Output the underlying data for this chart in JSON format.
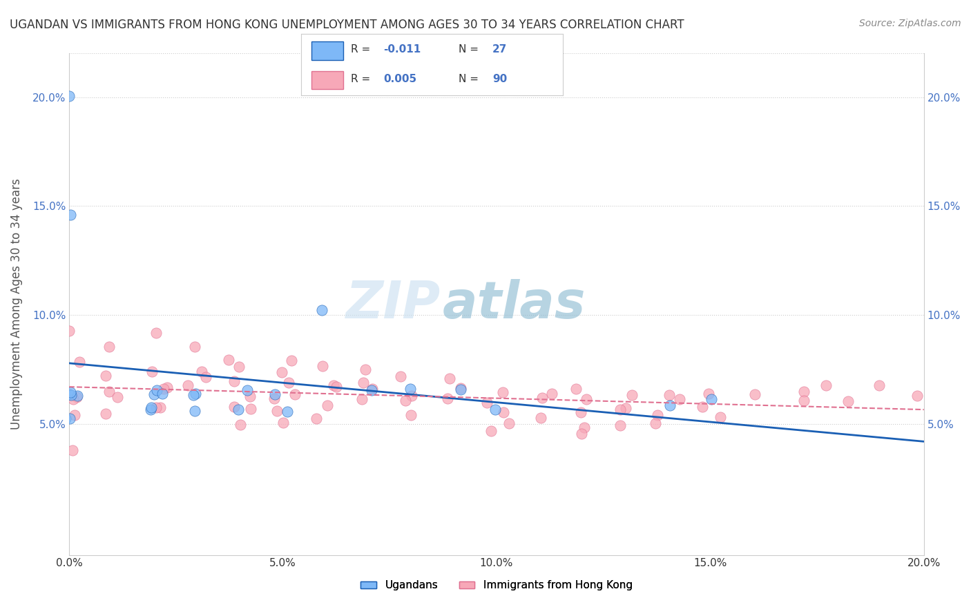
{
  "title": "UGANDAN VS IMMIGRANTS FROM HONG KONG UNEMPLOYMENT AMONG AGES 30 TO 34 YEARS CORRELATION CHART",
  "source": "Source: ZipAtlas.com",
  "ylabel": "Unemployment Among Ages 30 to 34 years",
  "xmin": 0.0,
  "xmax": 0.2,
  "ymin": -0.01,
  "ymax": 0.22,
  "x_ticks": [
    0.0,
    0.05,
    0.1,
    0.15,
    0.2
  ],
  "x_tick_labels": [
    "0.0%",
    "5.0%",
    "10.0%",
    "15.0%",
    "20.0%"
  ],
  "y_ticks": [
    0.05,
    0.1,
    0.15,
    0.2
  ],
  "y_tick_labels": [
    "5.0%",
    "10.0%",
    "15.0%",
    "20.0%"
  ],
  "legend1_label": "Ugandans",
  "legend2_label": "Immigrants from Hong Kong",
  "R1": "-0.011",
  "N1": "27",
  "R2": "0.005",
  "N2": "90",
  "color1": "#7eb8f7",
  "color2": "#f7a8b8",
  "line1_color": "#1a5fb4",
  "line2_color": "#e07090",
  "background_color": "#ffffff",
  "grid_color": "#cccccc",
  "uganda_x": [
    0.0,
    0.0,
    0.0,
    0.0,
    0.0,
    0.0,
    0.0,
    0.0,
    0.02,
    0.02,
    0.02,
    0.02,
    0.02,
    0.03,
    0.03,
    0.03,
    0.04,
    0.04,
    0.05,
    0.05,
    0.06,
    0.07,
    0.08,
    0.09,
    0.1,
    0.14,
    0.15
  ],
  "uganda_y": [
    0.2,
    0.145,
    0.0635,
    0.065,
    0.066,
    0.066,
    0.055,
    0.055,
    0.065,
    0.065,
    0.065,
    0.055,
    0.055,
    0.065,
    0.065,
    0.055,
    0.065,
    0.055,
    0.055,
    0.065,
    0.1,
    0.065,
    0.065,
    0.065,
    0.055,
    0.057,
    0.062
  ],
  "hk_x": [
    0.0,
    0.0,
    0.0,
    0.0,
    0.0,
    0.0,
    0.0,
    0.0,
    0.0,
    0.0,
    0.0,
    0.01,
    0.01,
    0.01,
    0.01,
    0.01,
    0.02,
    0.02,
    0.02,
    0.02,
    0.02,
    0.02,
    0.03,
    0.03,
    0.03,
    0.03,
    0.04,
    0.04,
    0.04,
    0.04,
    0.04,
    0.04,
    0.04,
    0.05,
    0.05,
    0.05,
    0.05,
    0.05,
    0.05,
    0.05,
    0.06,
    0.06,
    0.06,
    0.06,
    0.06,
    0.07,
    0.07,
    0.07,
    0.07,
    0.08,
    0.08,
    0.08,
    0.08,
    0.09,
    0.09,
    0.09,
    0.1,
    0.1,
    0.1,
    0.1,
    0.1,
    0.11,
    0.11,
    0.11,
    0.12,
    0.12,
    0.12,
    0.12,
    0.12,
    0.13,
    0.13,
    0.13,
    0.13,
    0.14,
    0.14,
    0.14,
    0.14,
    0.15,
    0.15,
    0.15,
    0.16,
    0.17,
    0.17,
    0.18,
    0.18,
    0.19,
    0.2,
    0.2,
    0.2,
    0.2
  ],
  "hk_y": [
    0.115,
    0.09,
    0.08,
    0.07,
    0.065,
    0.06,
    0.055,
    0.05,
    0.045,
    0.04,
    0.035,
    0.085,
    0.07,
    0.065,
    0.06,
    0.055,
    0.09,
    0.075,
    0.07,
    0.065,
    0.06,
    0.055,
    0.085,
    0.075,
    0.07,
    0.065,
    0.08,
    0.075,
    0.07,
    0.065,
    0.06,
    0.055,
    0.05,
    0.08,
    0.075,
    0.07,
    0.065,
    0.06,
    0.055,
    0.05,
    0.075,
    0.07,
    0.065,
    0.06,
    0.055,
    0.075,
    0.07,
    0.065,
    0.06,
    0.07,
    0.065,
    0.06,
    0.055,
    0.07,
    0.065,
    0.06,
    0.065,
    0.06,
    0.055,
    0.05,
    0.045,
    0.065,
    0.06,
    0.055,
    0.065,
    0.06,
    0.055,
    0.05,
    0.045,
    0.065,
    0.06,
    0.055,
    0.05,
    0.065,
    0.06,
    0.055,
    0.05,
    0.065,
    0.06,
    0.055,
    0.065,
    0.065,
    0.06,
    0.065,
    0.06,
    0.065,
    0.065,
    0.06,
    0.055,
    0.05
  ]
}
